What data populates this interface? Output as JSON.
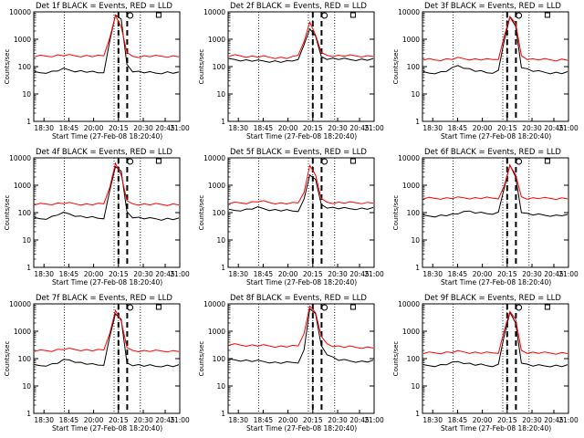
{
  "chart_data": [
    {
      "type": "line",
      "title": "Det 1f BLACK = Events, RED = LLD",
      "ylabel": "Counts/sec",
      "xlabel": "Start Time (27-Feb-08 18:20:40)",
      "x_ticks": [
        "18:30",
        "18:45",
        "20:00",
        "20:15",
        "20:30",
        "20:45",
        "21:00"
      ],
      "y_ticks": [
        "1",
        "10",
        "100",
        "1000",
        "10000"
      ],
      "ylim": [
        1,
        10000
      ],
      "yscale": "log",
      "grid": "vertical dotted",
      "series": [
        {
          "color": "#000000",
          "values": [
            60,
            60,
            62,
            65,
            72,
            80,
            75,
            70,
            68,
            65,
            62,
            60,
            65,
            800,
            8000,
            5000,
            120,
            70,
            65,
            62,
            60,
            58,
            60,
            62,
            60,
            58
          ]
        },
        {
          "color": "#ff0000",
          "values": [
            240,
            240,
            240,
            250,
            260,
            260,
            255,
            250,
            248,
            245,
            240,
            240,
            250,
            1200,
            7000,
            3000,
            300,
            240,
            235,
            240,
            240,
            238,
            240,
            240,
            238,
            240
          ]
        }
      ]
    },
    {
      "type": "line",
      "title": "Det 2f BLACK = Events, RED = LLD",
      "ylabel": "Counts/sec",
      "xlabel": "Start Time (27-Feb-08 18:20:40)",
      "x_ticks": [
        "18:30",
        "18:45",
        "20:00",
        "20:15",
        "20:30",
        "20:45",
        "21:00"
      ],
      "y_ticks": [
        "1",
        "10",
        "100",
        "1000",
        "10000"
      ],
      "ylim": [
        1,
        10000
      ],
      "yscale": "log",
      "grid": "vertical dotted",
      "series": [
        {
          "color": "#000000",
          "values": [
            180,
            180,
            175,
            170,
            165,
            160,
            160,
            158,
            155,
            150,
            150,
            160,
            200,
            600,
            2500,
            1200,
            230,
            200,
            195,
            190,
            185,
            182,
            180,
            180,
            178,
            180
          ]
        },
        {
          "color": "#ff0000",
          "values": [
            250,
            250,
            245,
            240,
            235,
            230,
            225,
            220,
            215,
            210,
            205,
            215,
            260,
            900,
            4000,
            1500,
            300,
            260,
            255,
            250,
            250,
            248,
            245,
            245,
            240,
            245
          ]
        }
      ]
    },
    {
      "type": "line",
      "title": "Det 3f BLACK = Events, RED = LLD",
      "ylabel": "Counts/sec",
      "xlabel": "Start Time (27-Feb-08 18:20:40)",
      "x_ticks": [
        "18:30",
        "18:45",
        "20:00",
        "20:15",
        "20:30",
        "20:45",
        "21:00"
      ],
      "y_ticks": [
        "1",
        "10",
        "100",
        "1000",
        "10000"
      ],
      "ylim": [
        1,
        10000
      ],
      "yscale": "log",
      "grid": "vertical dotted",
      "series": [
        {
          "color": "#000000",
          "values": [
            60,
            58,
            60,
            62,
            70,
            85,
            110,
            95,
            80,
            70,
            65,
            60,
            62,
            70,
            900,
            6000,
            3000,
            100,
            80,
            70,
            65,
            62,
            60,
            60,
            58,
            60
          ]
        },
        {
          "color": "#ff0000",
          "values": [
            180,
            180,
            175,
            180,
            185,
            190,
            200,
            195,
            190,
            185,
            180,
            178,
            180,
            200,
            1200,
            7000,
            3500,
            250,
            200,
            185,
            180,
            180,
            178,
            175,
            180,
            178
          ]
        }
      ]
    },
    {
      "type": "line",
      "title": "Det 4f BLACK = Events, RED = LLD",
      "ylabel": "Counts/sec",
      "xlabel": "Start Time (27-Feb-08 18:20:40)",
      "x_ticks": [
        "18:30",
        "18:45",
        "20:00",
        "20:15",
        "20:30",
        "20:45",
        "21:00"
      ],
      "y_ticks": [
        "1",
        "10",
        "100",
        "1000",
        "10000"
      ],
      "ylim": [
        1,
        10000
      ],
      "yscale": "log",
      "grid": "vertical dotted",
      "series": [
        {
          "color": "#000000",
          "values": [
            60,
            60,
            62,
            70,
            85,
            95,
            90,
            80,
            72,
            68,
            65,
            62,
            65,
            600,
            5000,
            3000,
            110,
            70,
            65,
            62,
            60,
            60,
            58,
            60,
            58,
            58
          ]
        },
        {
          "color": "#ff0000",
          "values": [
            200,
            200,
            205,
            210,
            215,
            220,
            215,
            210,
            205,
            200,
            200,
            200,
            210,
            900,
            6000,
            2500,
            250,
            210,
            205,
            200,
            200,
            198,
            200,
            198,
            200,
            200
          ]
        }
      ]
    },
    {
      "type": "line",
      "title": "Det 5f BLACK = Events, RED = LLD",
      "ylabel": "Counts/sec",
      "xlabel": "Start Time (27-Feb-08 18:20:40)",
      "x_ticks": [
        "18:30",
        "18:45",
        "20:00",
        "20:15",
        "20:30",
        "20:45",
        "21:00"
      ],
      "y_ticks": [
        "1",
        "10",
        "100",
        "1000",
        "10000"
      ],
      "ylim": [
        1,
        10000
      ],
      "yscale": "log",
      "grid": "vertical dotted",
      "series": [
        {
          "color": "#000000",
          "values": [
            120,
            120,
            125,
            130,
            140,
            150,
            140,
            130,
            125,
            120,
            118,
            115,
            120,
            300,
            2500,
            1500,
            200,
            160,
            150,
            145,
            140,
            138,
            140,
            140,
            138,
            140
          ]
        },
        {
          "color": "#ff0000",
          "values": [
            220,
            220,
            225,
            230,
            240,
            260,
            250,
            235,
            225,
            220,
            215,
            215,
            225,
            600,
            5000,
            2500,
            300,
            240,
            235,
            230,
            230,
            228,
            230,
            230,
            228,
            230
          ]
        }
      ]
    },
    {
      "type": "line",
      "title": "Det 6f BLACK = Events, RED = LLD",
      "ylabel": "Counts/sec",
      "xlabel": "Start Time (27-Feb-08 18:20:40)",
      "x_ticks": [
        "18:30",
        "18:45",
        "20:00",
        "20:15",
        "20:30",
        "20:45",
        "21:00"
      ],
      "y_ticks": [
        "1",
        "10",
        "100",
        "1000",
        "10000"
      ],
      "ylim": [
        1,
        10000
      ],
      "yscale": "log",
      "grid": "vertical dotted",
      "series": [
        {
          "color": "#000000",
          "values": [
            75,
            75,
            76,
            78,
            80,
            82,
            90,
            120,
            110,
            100,
            95,
            92,
            95,
            100,
            800,
            5000,
            2000,
            110,
            90,
            85,
            82,
            80,
            80,
            78,
            80,
            78
          ]
        },
        {
          "color": "#ff0000",
          "values": [
            330,
            330,
            330,
            335,
            335,
            340,
            345,
            350,
            345,
            340,
            340,
            338,
            340,
            350,
            900,
            5500,
            2200,
            380,
            340,
            335,
            335,
            332,
            330,
            330,
            330,
            330
          ]
        }
      ]
    },
    {
      "type": "line",
      "title": "Det 7f BLACK = Events, RED = LLD",
      "ylabel": "Counts/sec",
      "xlabel": "Start Time (27-Feb-08 18:20:40)",
      "x_ticks": [
        "18:30",
        "18:45",
        "20:00",
        "20:15",
        "20:30",
        "20:45",
        "21:00"
      ],
      "y_ticks": [
        "1",
        "10",
        "100",
        "1000",
        "10000"
      ],
      "ylim": [
        1,
        10000
      ],
      "yscale": "log",
      "grid": "vertical dotted",
      "series": [
        {
          "color": "#000000",
          "values": [
            55,
            55,
            58,
            62,
            70,
            85,
            90,
            80,
            70,
            65,
            60,
            58,
            62,
            600,
            4500,
            2500,
            70,
            60,
            58,
            55,
            55,
            52,
            55,
            55,
            53,
            55
          ]
        },
        {
          "color": "#ff0000",
          "values": [
            190,
            190,
            195,
            200,
            210,
            220,
            220,
            215,
            210,
            205,
            200,
            198,
            205,
            900,
            5500,
            2500,
            230,
            200,
            195,
            190,
            190,
            188,
            190,
            190,
            188,
            190
          ]
        }
      ]
    },
    {
      "type": "line",
      "title": "Det 8f BLACK = Events, RED = LLD",
      "ylabel": "Counts/sec",
      "xlabel": "Start Time (27-Feb-08 18:20:40)",
      "x_ticks": [
        "18:30",
        "18:45",
        "20:00",
        "20:15",
        "20:30",
        "20:45",
        "21:00"
      ],
      "y_ticks": [
        "1",
        "10",
        "100",
        "1000",
        "10000"
      ],
      "ylim": [
        1,
        10000
      ],
      "yscale": "log",
      "grid": "vertical dotted",
      "series": [
        {
          "color": "#000000",
          "values": [
            90,
            90,
            88,
            85,
            82,
            80,
            78,
            75,
            72,
            70,
            70,
            72,
            75,
            200,
            7000,
            4000,
            300,
            150,
            110,
            90,
            85,
            82,
            80,
            78,
            78,
            80
          ]
        },
        {
          "color": "#ff0000",
          "values": [
            320,
            320,
            315,
            310,
            305,
            300,
            295,
            290,
            285,
            280,
            278,
            280,
            290,
            900,
            8000,
            5000,
            600,
            350,
            300,
            280,
            270,
            265,
            260,
            258,
            255,
            255
          ]
        }
      ]
    },
    {
      "type": "line",
      "title": "Det 9f BLACK = Events, RED = LLD",
      "ylabel": "Counts/sec",
      "xlabel": "Start Time (27-Feb-08 18:20:40)",
      "x_ticks": [
        "18:30",
        "18:45",
        "20:00",
        "20:15",
        "20:30",
        "20:45",
        "21:00"
      ],
      "y_ticks": [
        "1",
        "10",
        "100",
        "1000",
        "10000"
      ],
      "ylim": [
        1,
        10000
      ],
      "yscale": "log",
      "grid": "vertical dotted",
      "series": [
        {
          "color": "#000000",
          "values": [
            55,
            55,
            56,
            58,
            62,
            68,
            78,
            72,
            65,
            60,
            58,
            55,
            56,
            60,
            700,
            4500,
            2000,
            75,
            60,
            56,
            55,
            54,
            55,
            55,
            53,
            55
          ]
        },
        {
          "color": "#ff0000",
          "values": [
            160,
            160,
            162,
            165,
            168,
            172,
            180,
            175,
            170,
            166,
            162,
            160,
            162,
            170,
            1000,
            5500,
            2500,
            200,
            170,
            165,
            162,
            160,
            160,
            158,
            160,
            160
          ]
        }
      ]
    }
  ]
}
